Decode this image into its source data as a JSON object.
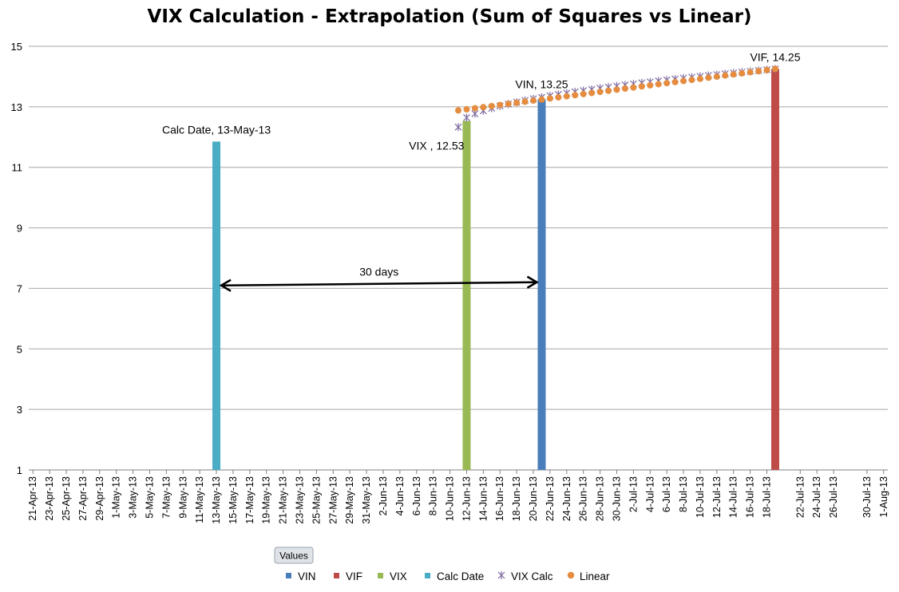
{
  "chart_data": {
    "type": "bar",
    "title": "VIX Calculation - Extrapolation (Sum of Squares vs Linear)",
    "xlabel": "",
    "ylabel": "",
    "ylim": [
      1,
      15
    ],
    "yticks": [
      1,
      3,
      5,
      7,
      9,
      11,
      13,
      15
    ],
    "grid": true,
    "x_range": [
      "21-Apr-13",
      "1-Aug-13"
    ],
    "x_tick_labels": [
      "21-Apr-13",
      "23-Apr-13",
      "25-Apr-13",
      "27-Apr-13",
      "29-Apr-13",
      "1-May-13",
      "3-May-13",
      "5-May-13",
      "7-May-13",
      "9-May-13",
      "11-May-13",
      "13-May-13",
      "15-May-13",
      "17-May-13",
      "19-May-13",
      "21-May-13",
      "23-May-13",
      "25-May-13",
      "27-May-13",
      "29-May-13",
      "31-May-13",
      "2-Jun-13",
      "4-Jun-13",
      "6-Jun-13",
      "8-Jun-13",
      "10-Jun-13",
      "12-Jun-13",
      "14-Jun-13",
      "16-Jun-13",
      "18-Jun-13",
      "20-Jun-13",
      "22-Jun-13",
      "24-Jun-13",
      "26-Jun-13",
      "28-Jun-13",
      "30-Jun-13",
      "2-Jul-13",
      "4-Jul-13",
      "6-Jul-13",
      "8-Jul-13",
      "10-Jul-13",
      "12-Jul-13",
      "14-Jul-13",
      "16-Jul-13",
      "18-Jul-13",
      "22-Jul-13",
      "24-Jul-13",
      "26-Jul-13",
      "30-Jul-13",
      "1-Aug-13"
    ],
    "legend_placement": "bottom",
    "series": [
      {
        "name": "VIN",
        "kind": "bar",
        "color": "#4a7ebb",
        "points": [
          {
            "x": "21-Jun-13",
            "y": 13.25
          }
        ]
      },
      {
        "name": "VIF",
        "kind": "bar",
        "color": "#be4b48",
        "points": [
          {
            "x": "19-Jul-13",
            "y": 14.25
          }
        ]
      },
      {
        "name": "VIX",
        "kind": "bar",
        "color": "#98b954",
        "points": [
          {
            "x": "12-Jun-13",
            "y": 12.53
          }
        ]
      },
      {
        "name": "Calc Date",
        "kind": "bar",
        "color": "#4bacc6",
        "points": [
          {
            "x": "13-May-13",
            "y": 11.85
          }
        ]
      },
      {
        "name": "VIX Calc",
        "kind": "star",
        "color": "#7e6aa0",
        "start": "11-Jun-13",
        "end": "19-Jul-13",
        "start_value": 12.33,
        "end_value": 14.25
      },
      {
        "name": "Linear",
        "kind": "dot",
        "color": "#e58c3e",
        "start": "11-Jun-13",
        "end": "19-Jul-13",
        "start_value": 12.88,
        "end_value": 14.25
      }
    ],
    "data_labels": [
      {
        "series": "Calc Date",
        "text": "Calc Date, 13-May-13"
      },
      {
        "series": "VIX",
        "text": "VIX , 12.53"
      },
      {
        "series": "VIN",
        "text": "VIN, 13.25"
      },
      {
        "series": "VIF",
        "text": "VIF, 14.25"
      }
    ],
    "annotation": {
      "text": "30 days",
      "from": "13-May-13",
      "to": "21-Jun-13",
      "y": 7.15
    },
    "legend_button": "Values"
  }
}
